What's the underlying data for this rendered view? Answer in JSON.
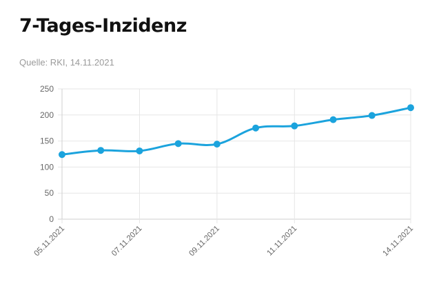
{
  "header": {
    "title": "7-Tages-Inzidenz",
    "source": "Quelle: RKI, 14.11.2021"
  },
  "colors": {
    "line": "#1ba3dd",
    "grid": "#e6e6e6",
    "axis": "#cfcfcf",
    "text": "#666666"
  },
  "chart_data": {
    "type": "line",
    "title": "7-Tages-Inzidenz",
    "x": [
      "05.11.2021",
      "06.11.2021",
      "07.11.2021",
      "08.11.2021",
      "09.11.2021",
      "10.11.2021",
      "11.11.2021",
      "12.11.2021",
      "13.11.2021",
      "14.11.2021"
    ],
    "x_tick_labels": [
      "05.11.2021",
      "07.11.2021",
      "09.11.2021",
      "11.11.2021",
      "14.11.2021"
    ],
    "series": [
      {
        "values": [
          124,
          132,
          131,
          145,
          144,
          175,
          179,
          191,
          199,
          214
        ]
      }
    ],
    "ylim": [
      0,
      250
    ],
    "y_ticks": [
      0,
      50,
      100,
      150,
      200,
      250
    ],
    "grid": true,
    "legend": "none"
  }
}
